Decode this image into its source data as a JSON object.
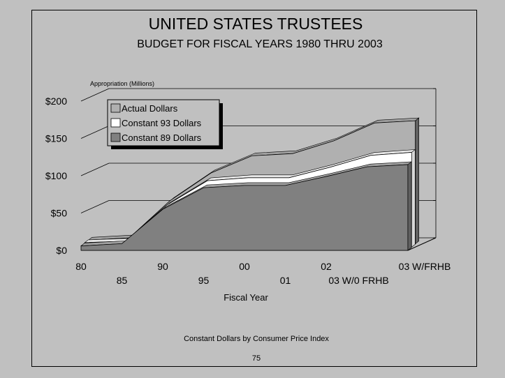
{
  "page": {
    "footnote": "Constant Dollars by Consumer Price Index",
    "page_number": "75"
  },
  "colors": {
    "background": "#c0c0c0",
    "actual": "#b0b0b0",
    "constant93": "#ffffff",
    "constant89": "#808080",
    "grid": "#000000"
  },
  "chart_data": {
    "type": "area",
    "title": "UNITED STATES TRUSTEES",
    "subtitle": "BUDGET FOR FISCAL YEARS 1980 THRU 2003",
    "ylabel": "Appropriation (Millions)",
    "xlabel": "Fiscal Year",
    "ylim": [
      0,
      200
    ],
    "yticks": [
      "$0",
      "$50",
      "$100",
      "$150",
      "$200"
    ],
    "categories": [
      "80",
      "85",
      "90",
      "95",
      "00",
      "01",
      "02",
      "03 W/0 FRHB",
      "03 W/FRHB"
    ],
    "series": [
      {
        "name": "Actual Dollars",
        "values": [
          5,
          8,
          58,
          95,
          118,
          121,
          138,
          162,
          165
        ]
      },
      {
        "name": "Constant 93 Dollars",
        "values": [
          6,
          8,
          56,
          89,
          93,
          93,
          107,
          123,
          127
        ]
      },
      {
        "name": "Constant 89 Dollars",
        "values": [
          6,
          9,
          55,
          84,
          87,
          87,
          99,
          112,
          115
        ]
      }
    ],
    "legend_position": "top-left",
    "grid": true
  }
}
